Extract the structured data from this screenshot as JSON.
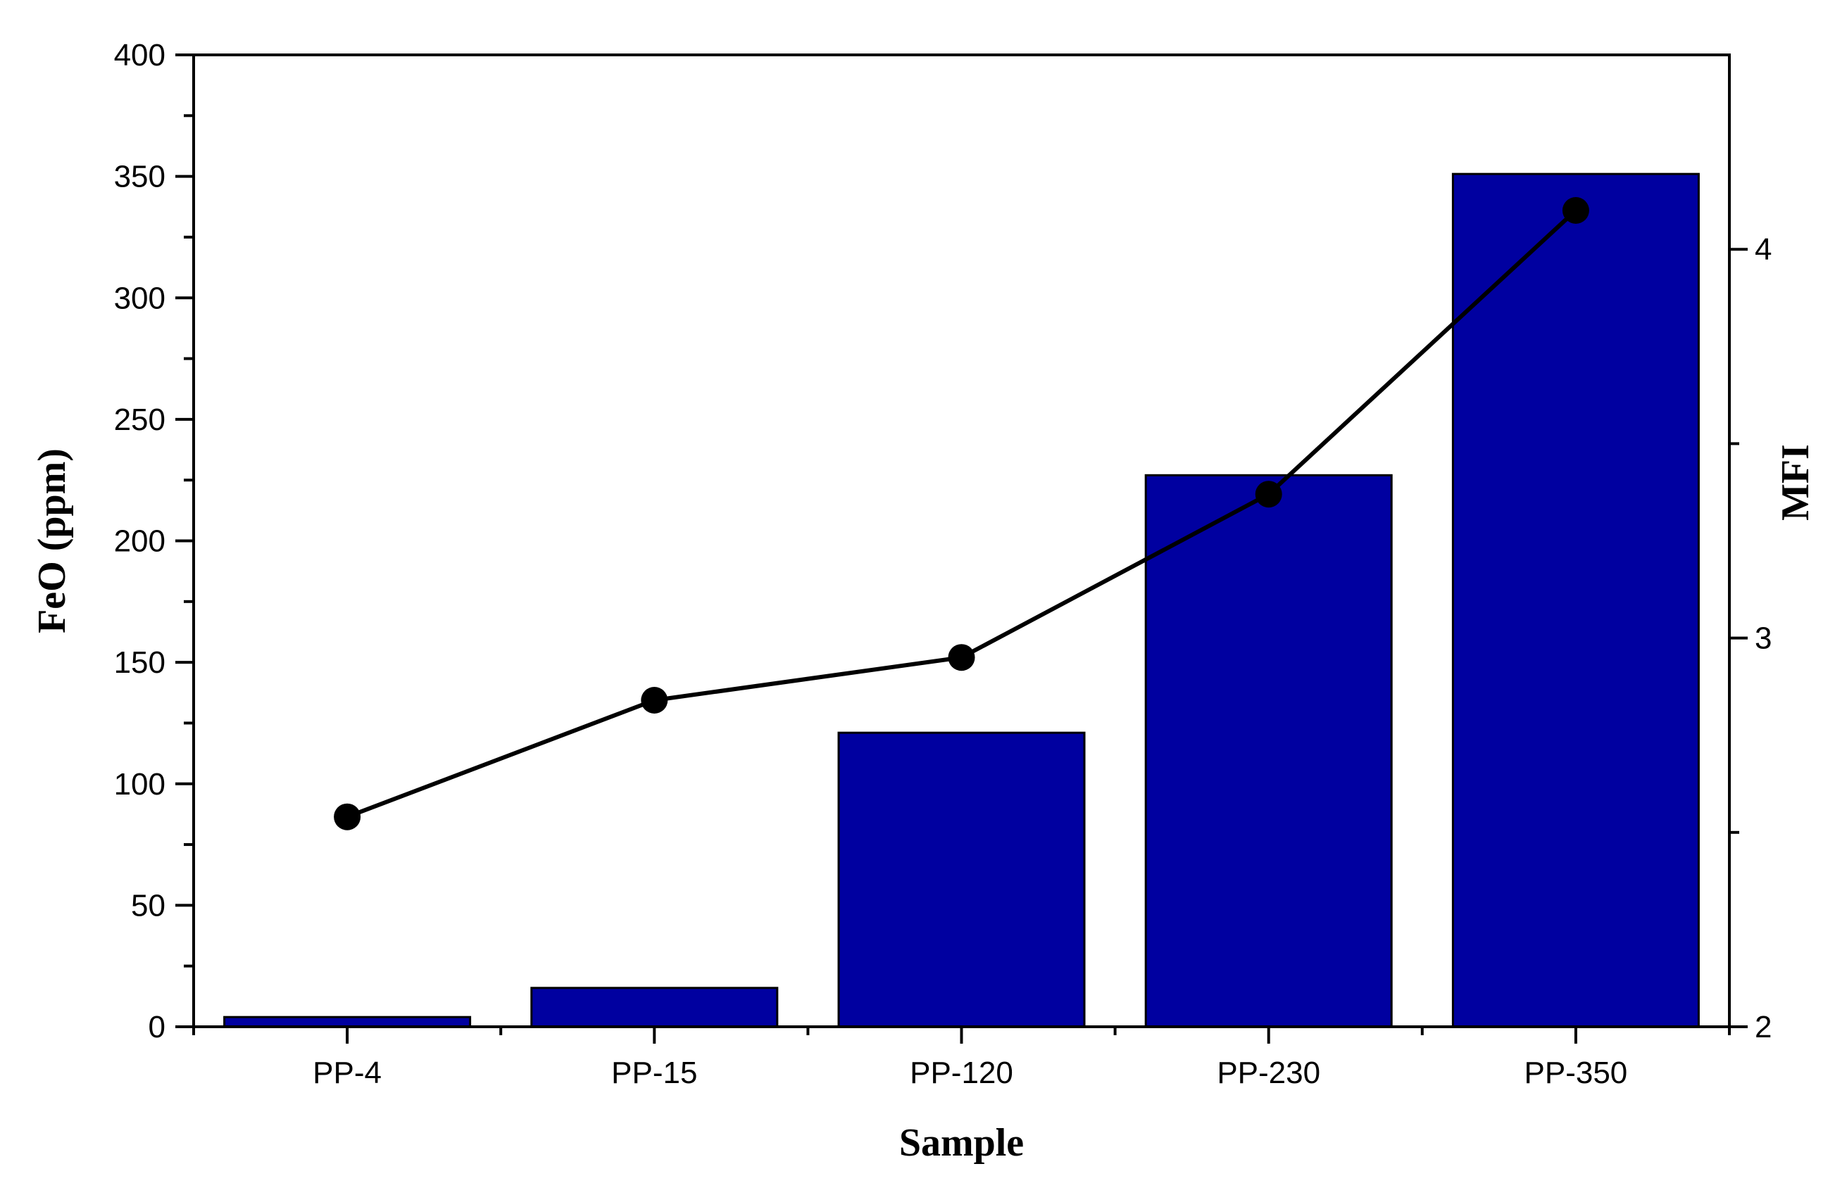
{
  "chart_data": {
    "type": "bar",
    "categories": [
      "PP-4",
      "PP-15",
      "PP-120",
      "PP-230",
      "PP-350"
    ],
    "series": [
      {
        "name": "FeO (ppm)",
        "type": "bar",
        "axis": "left",
        "values": [
          4,
          16,
          121,
          227,
          351
        ],
        "color": "#0000A0"
      },
      {
        "name": "MFI",
        "type": "line",
        "axis": "right",
        "values": [
          2.54,
          2.84,
          2.95,
          3.37,
          4.1
        ],
        "color": "#000000"
      }
    ],
    "xlabel": "Sample",
    "ylabel": "FeO (ppm)",
    "y2label": "MFI",
    "ylim": [
      0,
      400
    ],
    "y2lim": [
      2,
      4.5
    ],
    "yticks": [
      "0",
      "50",
      "100",
      "150",
      "200",
      "250",
      "300",
      "350",
      "400"
    ],
    "y2ticks": [
      "2",
      "3",
      "4"
    ],
    "grid": false,
    "legend": "none"
  }
}
